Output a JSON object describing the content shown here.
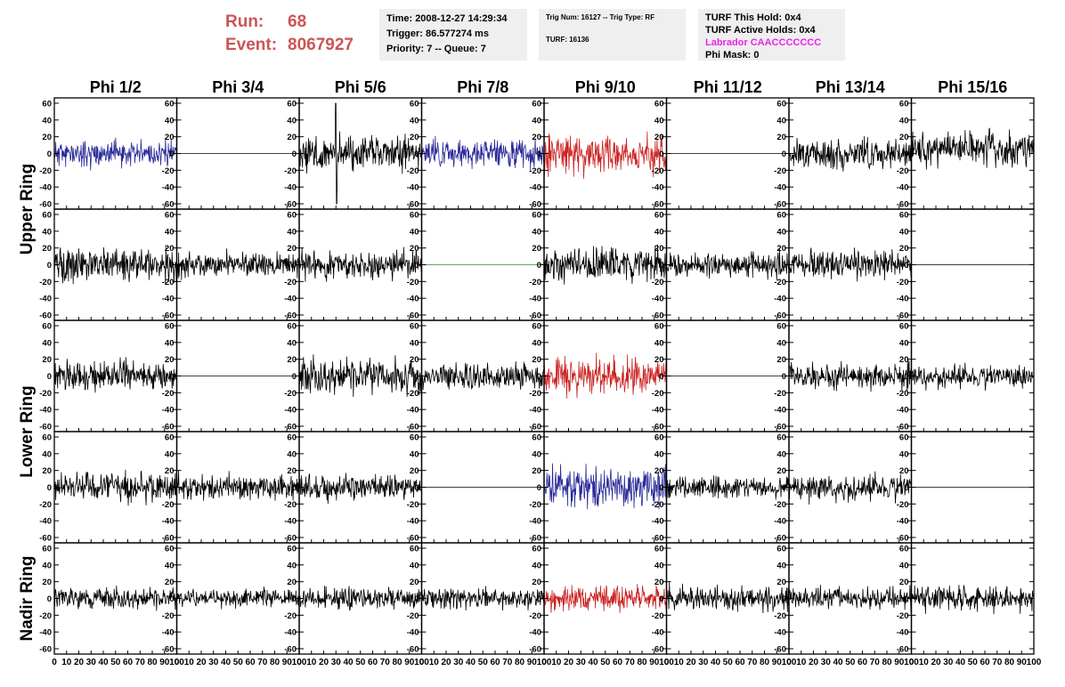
{
  "header": {
    "run_label": "Run:",
    "run_value": "68",
    "event_label": "Event:",
    "event_value": "8067927",
    "time_box": {
      "time": "Time: 2008-12-27 14:29:34",
      "trigger": "Trigger: 86.577274 ms",
      "priority": "Priority: 7 -- Queue: 7"
    },
    "trig_box": {
      "trig": "Trig Num: 16127 -- Trig Type: RF",
      "turf": "TURF: 16136"
    },
    "turf_box": {
      "this_hold": "TURF This Hold: 0x4",
      "active_holds": "TURF Active Holds: 0x4",
      "labrador": "Labrador CAACCCCCCC",
      "phi_mask": "Phi Mask: 0"
    },
    "colors": {
      "run": "#cc5555",
      "labrador": "#ee22ee"
    }
  },
  "chart_data": {
    "type": "line",
    "columns": [
      "Phi 1/2",
      "Phi 3/4",
      "Phi 5/6",
      "Phi 7/8",
      "Phi 9/10",
      "Phi 11/12",
      "Phi 13/14",
      "Phi 15/16"
    ],
    "ring_labels": [
      {
        "text": "Upper Ring",
        "rows": [
          0,
          1
        ]
      },
      {
        "text": "Lower Ring",
        "rows": [
          2,
          3
        ]
      },
      {
        "text": "Nadir Ring",
        "rows": [
          4
        ]
      }
    ],
    "xlim": [
      0,
      100
    ],
    "ylim": [
      -60,
      60
    ],
    "x_ticks": [
      "0",
      "10",
      "20",
      "30",
      "40",
      "50",
      "60",
      "70",
      "80",
      "90",
      "100"
    ],
    "y_ticks": [
      "60",
      "40",
      "20",
      "0",
      "-20",
      "-40",
      "-60"
    ],
    "series_colors": {
      "black": "#000000",
      "blue": "#2a2a99",
      "red": "#cc2222",
      "green": "#229922"
    },
    "panels": [
      [
        {
          "color": "blue",
          "amp": 16,
          "seed": 11
        },
        {
          "color": "black",
          "amp": 0,
          "seed": 0
        },
        {
          "color": "black",
          "amp": 22,
          "seed": 13,
          "spike": [
            30,
            60
          ]
        },
        {
          "color": "blue",
          "amp": 17,
          "seed": 14
        },
        {
          "color": "red",
          "amp": 24,
          "seed": 15
        },
        {
          "color": "black",
          "amp": 0,
          "seed": 0
        },
        {
          "color": "black",
          "amp": 18,
          "seed": 17
        },
        {
          "color": "black",
          "amp": 20,
          "seed": 18,
          "offset": 5
        }
      ],
      [
        {
          "color": "black",
          "amp": 20,
          "seed": 21
        },
        {
          "color": "black",
          "amp": 15,
          "seed": 22
        },
        {
          "color": "black",
          "amp": 18,
          "seed": 23
        },
        {
          "color": "green",
          "amp": 0,
          "seed": 0
        },
        {
          "color": "black",
          "amp": 20,
          "seed": 25
        },
        {
          "color": "black",
          "amp": 15,
          "seed": 26
        },
        {
          "color": "black",
          "amp": 16,
          "seed": 27
        },
        {
          "color": "black",
          "amp": 0,
          "seed": 0
        }
      ],
      [
        {
          "color": "black",
          "amp": 18,
          "seed": 31
        },
        {
          "color": "black",
          "amp": 0,
          "seed": 0
        },
        {
          "color": "black",
          "amp": 22,
          "seed": 33
        },
        {
          "color": "black",
          "amp": 16,
          "seed": 34
        },
        {
          "color": "red",
          "amp": 22,
          "seed": 35
        },
        {
          "color": "black",
          "amp": 0,
          "seed": 0
        },
        {
          "color": "black",
          "amp": 16,
          "seed": 37
        },
        {
          "color": "black",
          "amp": 14,
          "seed": 38
        }
      ],
      [
        {
          "color": "black",
          "amp": 18,
          "seed": 41
        },
        {
          "color": "black",
          "amp": 16,
          "seed": 42
        },
        {
          "color": "black",
          "amp": 16,
          "seed": 43
        },
        {
          "color": "black",
          "amp": 0,
          "seed": 0
        },
        {
          "color": "blue",
          "amp": 27,
          "seed": 45
        },
        {
          "color": "black",
          "amp": 13,
          "seed": 46
        },
        {
          "color": "black",
          "amp": 16,
          "seed": 47
        },
        {
          "color": "black",
          "amp": 0,
          "seed": 0
        }
      ],
      [
        {
          "color": "black",
          "amp": 13,
          "seed": 51
        },
        {
          "color": "black",
          "amp": 12,
          "seed": 52
        },
        {
          "color": "black",
          "amp": 13,
          "seed": 53
        },
        {
          "color": "black",
          "amp": 13,
          "seed": 54
        },
        {
          "color": "red",
          "amp": 15,
          "seed": 55
        },
        {
          "color": "black",
          "amp": 15,
          "seed": 56
        },
        {
          "color": "black",
          "amp": 14,
          "seed": 57
        },
        {
          "color": "black",
          "amp": 16,
          "seed": 58
        }
      ]
    ]
  }
}
